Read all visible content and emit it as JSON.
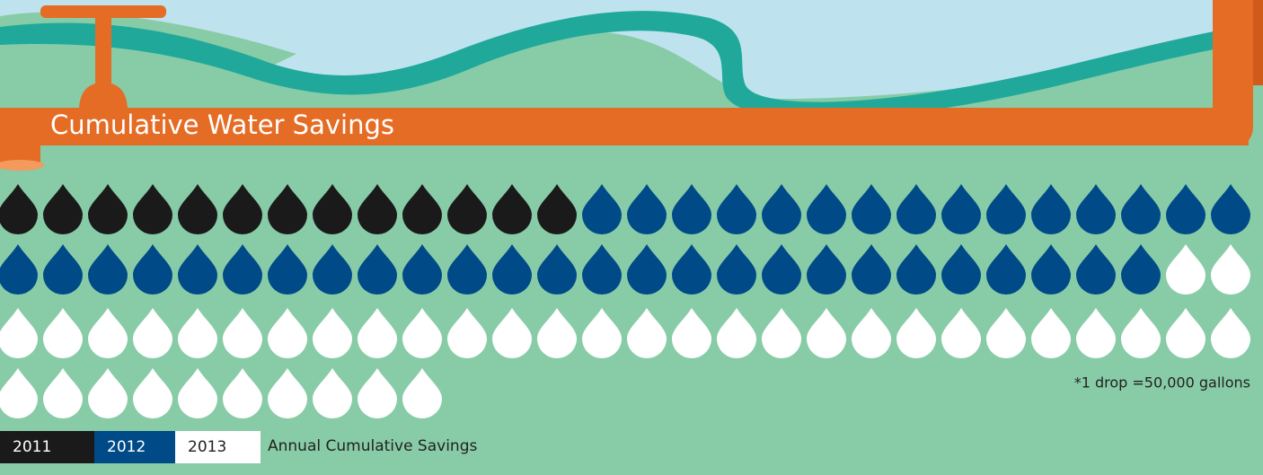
{
  "chart_data": {
    "type": "pictogram",
    "title": "Cumulative Water Savings",
    "note": "*1 drop =50,000 gallons",
    "legend_title": "Annual Cumulative Savings",
    "series": [
      {
        "name": "2011",
        "color": "#1a1a1a",
        "value": 13
      },
      {
        "name": "2012",
        "color": "#004a87",
        "value": 41
      },
      {
        "name": "2013",
        "color": "#ffffff",
        "value": 40
      }
    ]
  }
}
